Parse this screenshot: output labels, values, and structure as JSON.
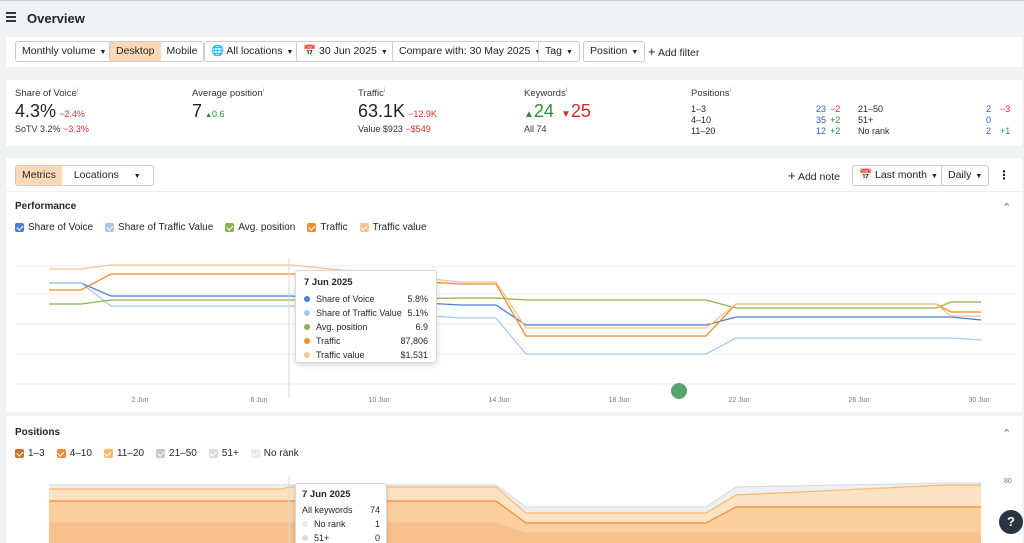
{
  "header": {
    "title": "Overview"
  },
  "filters": {
    "volume": "Monthly volume",
    "device_desktop": "Desktop",
    "device_mobile": "Mobile",
    "locations": "All locations",
    "date": "30 Jun 2025",
    "compare": "Compare with: 30 May 2025",
    "tag": "Tag",
    "position": "Position",
    "add_filter": "Add filter"
  },
  "stats": {
    "sov": {
      "label": "Share of Voice",
      "value": "4.3%",
      "delta": "−2.4%",
      "sotv_label": "SoTV",
      "sotv_value": "3.2%",
      "sotv_delta": "−3.3%"
    },
    "avgpos": {
      "label": "Average position",
      "value": "7",
      "delta": "0.6"
    },
    "traffic": {
      "label": "Traffic",
      "value": "63.1K",
      "delta": "−12.9K",
      "sub_label": "Value",
      "sub_value": "$923",
      "sub_delta": "−$549"
    },
    "keywords": {
      "label": "Keywords",
      "up": "24",
      "down": "25",
      "all_label": "All",
      "all_value": "74"
    },
    "positions": {
      "label": "Positions",
      "rows": [
        {
          "range": "1–3",
          "value": "23",
          "delta": "−2"
        },
        {
          "range": "4–10",
          "value": "35",
          "delta": "+2"
        },
        {
          "range": "11–20",
          "value": "12",
          "delta": "+2"
        },
        {
          "range": "21–50",
          "value": "2",
          "delta": "−3"
        },
        {
          "range": "51+",
          "value": "0",
          "delta": ""
        },
        {
          "range": "No rank",
          "value": "2",
          "delta": "+1"
        }
      ]
    }
  },
  "toolbar": {
    "metrics": "Metrics",
    "locations": "Locations",
    "add_note": "Add note",
    "period": "Last month",
    "interval": "Daily"
  },
  "performance": {
    "title": "Performance",
    "legend": [
      {
        "label": "Share of Voice",
        "color": "#4a7fd4"
      },
      {
        "label": "Share of Traffic Value",
        "color": "#a9c7ee"
      },
      {
        "label": "Avg. position",
        "color": "#8ab54a"
      },
      {
        "label": "Traffic",
        "color": "#f08c2e"
      },
      {
        "label": "Traffic value",
        "color": "#f7c48f"
      }
    ],
    "tooltip": {
      "title": "7 Jun 2025",
      "rows": [
        {
          "name": "Share of Voice",
          "value": "5.8%",
          "color": "#4a7fd4"
        },
        {
          "name": "Share of Traffic Value",
          "value": "5.1%",
          "color": "#a9c7ee"
        },
        {
          "name": "Avg. position",
          "value": "6.9",
          "color": "#8ab54a"
        },
        {
          "name": "Traffic",
          "value": "87,806",
          "color": "#f08c2e"
        },
        {
          "name": "Traffic value",
          "value": "$1,531",
          "color": "#f7c48f"
        }
      ]
    },
    "xticks": [
      "2 Jun",
      "6 Jun",
      "10 Jun",
      "14 Jun",
      "18 Jun",
      "22 Jun",
      "26 Jun",
      "30 Jun"
    ]
  },
  "positions_chart": {
    "title": "Positions",
    "legend": [
      {
        "label": "1–3",
        "color": "#c9741e"
      },
      {
        "label": "4–10",
        "color": "#f08c2e"
      },
      {
        "label": "11–20",
        "color": "#f7b96b"
      },
      {
        "label": "21–50",
        "color": "#c4c9d0"
      },
      {
        "label": "51+",
        "color": "#d9dde2"
      },
      {
        "label": "No rank",
        "color": "#e8eaed"
      }
    ],
    "ytick": "80",
    "tooltip": {
      "title": "7 Jun 2025",
      "rows": [
        {
          "name": "All keywords",
          "value": "74",
          "color": ""
        },
        {
          "name": "No rank",
          "value": "1",
          "color": "#e8eaed"
        },
        {
          "name": "51+",
          "value": "0",
          "color": "#d9dde2"
        }
      ]
    }
  },
  "help": "?"
}
